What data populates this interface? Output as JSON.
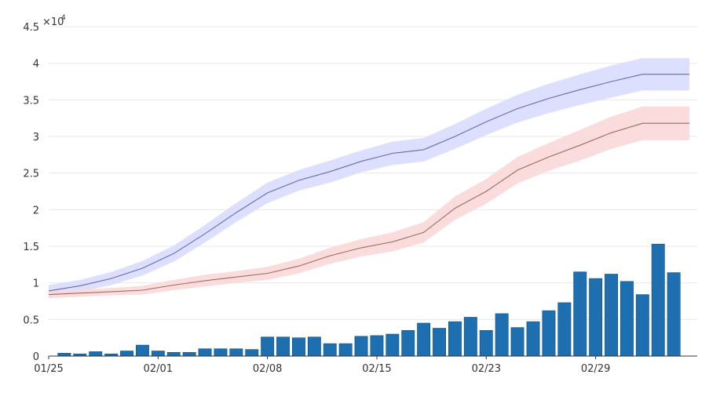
{
  "chart_data": {
    "type": "bar+line",
    "title": "",
    "xlabel": "",
    "ylabel": "",
    "y_exponent_label": "×10",
    "y_exponent_power": "4",
    "ylim": [
      0,
      4.5
    ],
    "y_ticks": [
      0,
      0.5,
      1,
      1.5,
      2,
      2.5,
      3,
      3.5,
      4,
      4.5
    ],
    "y_tick_labels": [
      "0",
      "0.5",
      "1",
      "1.5",
      "2",
      "2.5",
      "3",
      "3.5",
      "4",
      "4.5"
    ],
    "x_domain": [
      0,
      41.5
    ],
    "x_ticks": [
      0,
      7,
      14,
      21,
      28,
      35
    ],
    "x_tick_labels": [
      "01/25",
      "02/01",
      "02/08",
      "02/15",
      "02/23",
      "02/29"
    ],
    "grid": true,
    "colors": {
      "bars": "#1d6fb0",
      "bar_edge": "#0f4f85",
      "blue_band": "#d9dcff",
      "blue_line": "#6a6aa8",
      "red_band": "#fbd8d8",
      "red_line": "#9a6a6a"
    },
    "bars": {
      "name": "daily",
      "x": [
        1,
        2,
        3,
        4,
        5,
        6,
        7,
        8,
        9,
        10,
        11,
        12,
        13,
        14,
        15,
        16,
        17,
        18,
        19,
        20,
        21,
        22,
        23,
        24,
        25,
        26,
        27,
        28,
        29,
        30,
        31,
        32,
        33,
        34,
        35,
        36,
        37,
        38,
        39,
        40,
        41
      ],
      "values": [
        0.04,
        0.03,
        0.06,
        0.03,
        0.07,
        0.15,
        0.07,
        0.05,
        0.05,
        0.1,
        0.1,
        0.1,
        0.09,
        0.26,
        0.26,
        0.25,
        0.26,
        0.17,
        0.17,
        0.27,
        0.28,
        0.3,
        0.35,
        0.45,
        0.38,
        0.47,
        0.53,
        0.35,
        0.58,
        0.39,
        0.47,
        0.62,
        0.73,
        1.15,
        1.06,
        1.12,
        1.02,
        0.84,
        1.53,
        1.14,
        0.0
      ]
    },
    "series": [
      {
        "name": "upper",
        "x": [
          0,
          2,
          4,
          6,
          8,
          10,
          12,
          14,
          16,
          18,
          20,
          22,
          24,
          26,
          28,
          30,
          32,
          34,
          36,
          38,
          40,
          41
        ],
        "values": [
          0.89,
          0.96,
          1.06,
          1.2,
          1.4,
          1.67,
          1.96,
          2.23,
          2.4,
          2.52,
          2.66,
          2.77,
          2.82,
          3.0,
          3.2,
          3.38,
          3.52,
          3.64,
          3.75,
          3.85,
          3.85,
          3.85
        ],
        "band_halfwidth": [
          0.08,
          0.08,
          0.09,
          0.1,
          0.11,
          0.12,
          0.13,
          0.14,
          0.14,
          0.15,
          0.15,
          0.16,
          0.16,
          0.17,
          0.18,
          0.19,
          0.2,
          0.21,
          0.22,
          0.22,
          0.22,
          0.22
        ]
      },
      {
        "name": "lower",
        "x": [
          0,
          2,
          4,
          6,
          8,
          10,
          12,
          14,
          16,
          18,
          20,
          22,
          24,
          26,
          28,
          30,
          32,
          34,
          36,
          38,
          40,
          41
        ],
        "values": [
          0.84,
          0.86,
          0.88,
          0.9,
          0.97,
          1.03,
          1.08,
          1.13,
          1.23,
          1.37,
          1.48,
          1.56,
          1.69,
          2.02,
          2.25,
          2.54,
          2.72,
          2.88,
          3.05,
          3.18,
          3.18,
          3.18
        ],
        "band_halfwidth": [
          0.05,
          0.05,
          0.05,
          0.06,
          0.07,
          0.08,
          0.08,
          0.09,
          0.1,
          0.11,
          0.12,
          0.13,
          0.14,
          0.16,
          0.17,
          0.18,
          0.19,
          0.21,
          0.22,
          0.23,
          0.23,
          0.23
        ]
      }
    ]
  }
}
